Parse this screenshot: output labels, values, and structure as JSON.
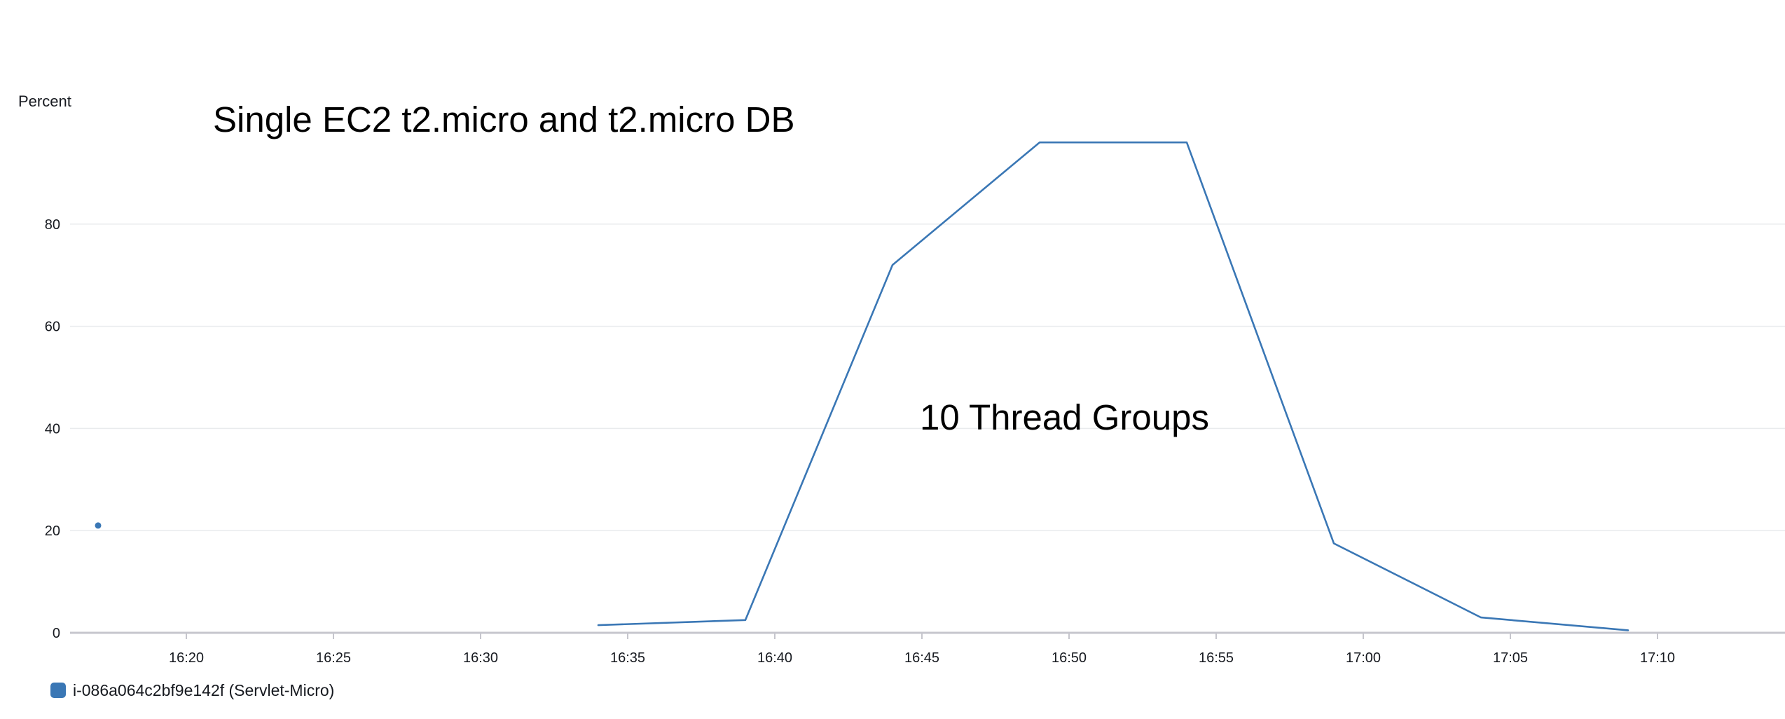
{
  "chart_data": {
    "type": "line",
    "title": "Single EC2 t2.micro and t2.micro DB",
    "ylabel": "Percent",
    "xlabel": "",
    "ylim": [
      0,
      100
    ],
    "y_ticks": [
      0,
      20,
      40,
      60,
      80
    ],
    "x_ticks": [
      "16:20",
      "16:25",
      "16:30",
      "16:35",
      "16:40",
      "16:45",
      "16:50",
      "16:55",
      "17:00",
      "17:05",
      "17:10"
    ],
    "grid": true,
    "legend_position": "bottom-left",
    "annotations": [
      {
        "text": "10 Thread Groups",
        "x": "16:49",
        "y": 41
      }
    ],
    "series": [
      {
        "name": "i-086a064c2bf9e142f (Servlet-Micro)",
        "color": "#3a77b5",
        "isolated_points": [
          {
            "x": "16:17",
            "y": 21
          }
        ],
        "points": [
          {
            "x": "16:34",
            "y": 1.5
          },
          {
            "x": "16:39",
            "y": 2.5
          },
          {
            "x": "16:44",
            "y": 72
          },
          {
            "x": "16:49",
            "y": 96
          },
          {
            "x": "16:54",
            "y": 96
          },
          {
            "x": "16:59",
            "y": 17.5
          },
          {
            "x": "17:04",
            "y": 3
          },
          {
            "x": "17:09",
            "y": 0.5
          }
        ]
      }
    ]
  }
}
